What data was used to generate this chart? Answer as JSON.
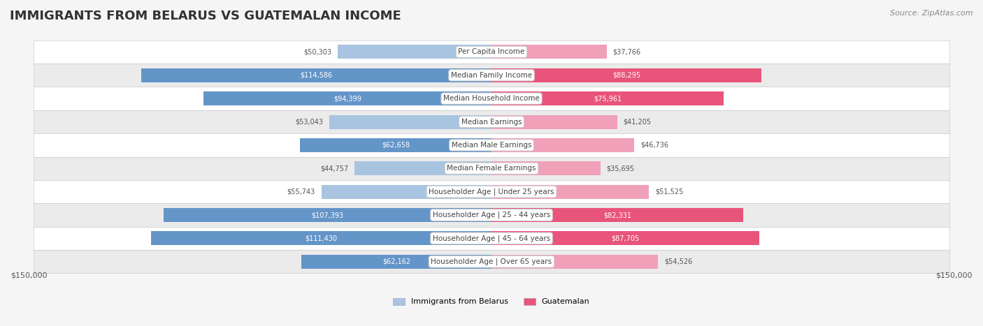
{
  "title": "IMMIGRANTS FROM BELARUS VS GUATEMALAN INCOME",
  "source": "Source: ZipAtlas.com",
  "categories": [
    "Per Capita Income",
    "Median Family Income",
    "Median Household Income",
    "Median Earnings",
    "Median Male Earnings",
    "Median Female Earnings",
    "Householder Age | Under 25 years",
    "Householder Age | 25 - 44 years",
    "Householder Age | 45 - 64 years",
    "Householder Age | Over 65 years"
  ],
  "belarus_values": [
    50303,
    114586,
    94399,
    53043,
    62658,
    44757,
    55743,
    107393,
    111430,
    62162
  ],
  "guatemalan_values": [
    37766,
    88295,
    75961,
    41205,
    46736,
    35695,
    51525,
    82331,
    87705,
    54526
  ],
  "belarus_labels": [
    "$50,303",
    "$114,586",
    "$94,399",
    "$53,043",
    "$62,658",
    "$44,757",
    "$55,743",
    "$107,393",
    "$111,430",
    "$62,162"
  ],
  "guatemalan_labels": [
    "$37,766",
    "$88,295",
    "$75,961",
    "$41,205",
    "$46,736",
    "$35,695",
    "$51,525",
    "$82,331",
    "$87,705",
    "$54,526"
  ],
  "max_value": 150000,
  "belarus_bar_color_light": "#a8c4e0",
  "belarus_bar_color_dark": "#6495c8",
  "guatemalan_bar_color_light": "#f0a0b8",
  "guatemalan_bar_color_dark": "#e8547a",
  "label_color_light": "#555555",
  "label_color_dark": "#ffffff",
  "background_color": "#f5f5f5",
  "row_bg_color": "#ffffff",
  "row_alt_bg_color": "#f0f0f0",
  "center_label_bg": "#ffffff",
  "threshold_dark_label": 60000,
  "legend_belarus": "Immigrants from Belarus",
  "legend_guatemalan": "Guatemalan",
  "x_axis_label_left": "$150,000",
  "x_axis_label_right": "$150,000"
}
